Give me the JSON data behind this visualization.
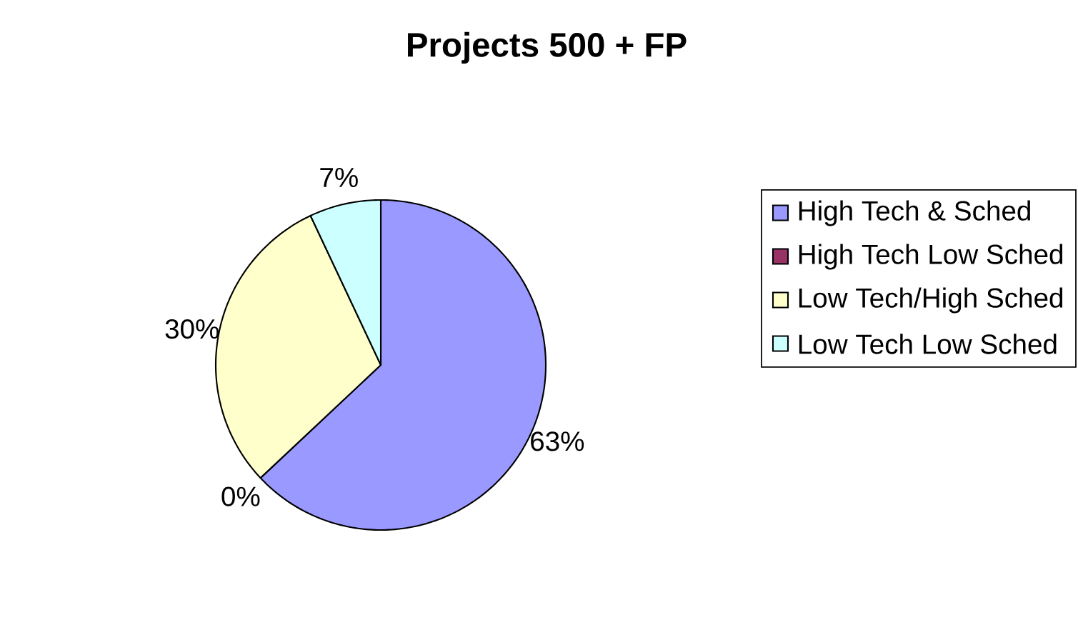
{
  "chart_data": {
    "type": "pie",
    "title": "Projects 500 + FP",
    "categories": [
      "High Tech & Sched",
      "High Tech Low Sched",
      "Low Tech/High Sched",
      "Low Tech Low Sched"
    ],
    "values": [
      63,
      0,
      30,
      7
    ],
    "value_labels": [
      "63%",
      "0%",
      "30%",
      "7%"
    ],
    "colors": [
      "#9999ff",
      "#993366",
      "#ffffcc",
      "#ccffff"
    ],
    "legend": "right"
  }
}
